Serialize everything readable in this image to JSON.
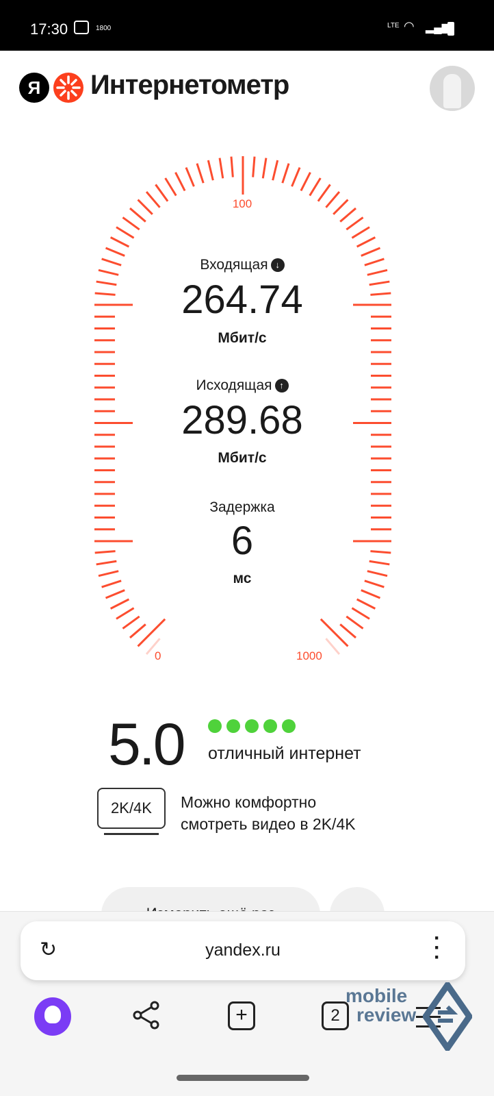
{
  "status_bar": {
    "time": "17:30",
    "network_badge": "1800",
    "right_icons": [
      "volte-lte-icon",
      "wifi-icon",
      "signal-icon",
      "battery-icon"
    ]
  },
  "header": {
    "logo_letter": "Я",
    "title": "Интернетометр"
  },
  "gauge": {
    "labels": {
      "min": "0",
      "mid": "100",
      "max": "1000"
    },
    "color": "#fc4d2f"
  },
  "download": {
    "label": "Входящая",
    "value": "264.74",
    "unit": "Мбит/с"
  },
  "upload": {
    "label": "Исходящая",
    "value": "289.68",
    "unit": "Мбит/с"
  },
  "latency": {
    "label": "Задержка",
    "value": "6",
    "unit": "мс"
  },
  "rating": {
    "score": "5.0",
    "dots_filled": 5,
    "dots_total": 5,
    "verdict": "отличный интернет",
    "dot_color": "#4fd23b"
  },
  "quality": {
    "badge": "2K/4K",
    "text_line1": "Можно комфортно",
    "text_line2": "смотреть видео в 2K/4K"
  },
  "actions": {
    "measure_again": "Измерить ещё раз"
  },
  "browser": {
    "url": "yandex.ru",
    "tab_count": "2"
  },
  "watermark": {
    "line1": "mobile",
    "line2": "review"
  }
}
